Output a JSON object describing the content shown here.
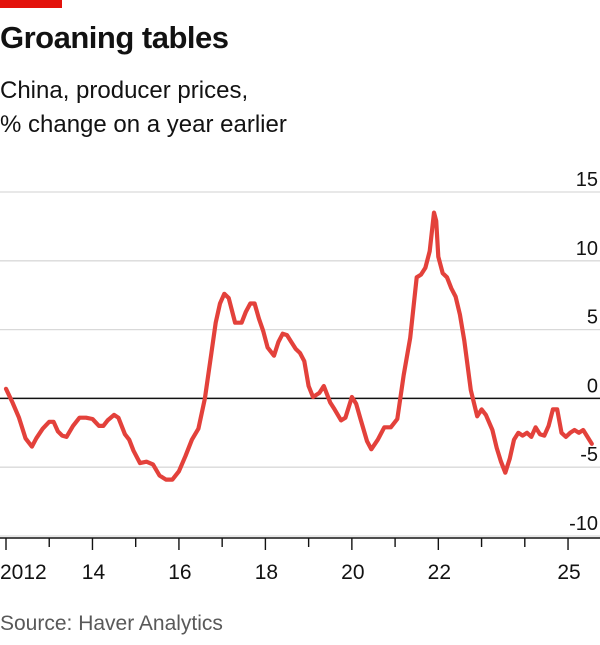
{
  "header": {
    "title": "Groaning tables",
    "subtitle_lines": [
      "China, producer prices,",
      "% change on a year earlier"
    ]
  },
  "footer": {
    "source": "Source: Haver Analytics"
  },
  "colors": {
    "accent": "#e3120b",
    "line": "#e3413b",
    "grid": "#d9d9d9",
    "zero": "#121212",
    "text": "#121212"
  },
  "chart_data": {
    "type": "line",
    "title": "",
    "xlabel": "",
    "ylabel": "",
    "ylim": [
      -10,
      15
    ],
    "xlim": [
      2012,
      2025.7
    ],
    "grid": true,
    "y_axis_side": "right",
    "y_ticks": [
      15,
      10,
      5,
      0,
      -5,
      -10
    ],
    "y_tick_labels": [
      "15",
      "10",
      "5",
      "0",
      "-5",
      "-10"
    ],
    "x_labels": [
      {
        "x": 2012,
        "label": "2012"
      },
      {
        "x": 2014,
        "label": "14"
      },
      {
        "x": 2016,
        "label": "16"
      },
      {
        "x": 2018,
        "label": "18"
      },
      {
        "x": 2020,
        "label": "20"
      },
      {
        "x": 2022,
        "label": "22"
      },
      {
        "x": 2025,
        "label": "25"
      }
    ],
    "x_minor_ticks": [
      2013,
      2015,
      2017,
      2019,
      2021,
      2023,
      2024
    ],
    "series": [
      {
        "values": [
          [
            2012.0,
            0.7
          ],
          [
            2012.15,
            -0.3
          ],
          [
            2012.3,
            -1.4
          ],
          [
            2012.45,
            -2.9
          ],
          [
            2012.6,
            -3.5
          ],
          [
            2012.7,
            -2.9
          ],
          [
            2012.85,
            -2.2
          ],
          [
            2013.0,
            -1.7
          ],
          [
            2013.1,
            -1.7
          ],
          [
            2013.2,
            -2.4
          ],
          [
            2013.3,
            -2.7
          ],
          [
            2013.4,
            -2.8
          ],
          [
            2013.55,
            -2.0
          ],
          [
            2013.7,
            -1.4
          ],
          [
            2013.85,
            -1.4
          ],
          [
            2014.0,
            -1.5
          ],
          [
            2014.15,
            -2.0
          ],
          [
            2014.25,
            -2.0
          ],
          [
            2014.35,
            -1.6
          ],
          [
            2014.5,
            -1.2
          ],
          [
            2014.6,
            -1.4
          ],
          [
            2014.75,
            -2.6
          ],
          [
            2014.85,
            -3.0
          ],
          [
            2014.95,
            -3.8
          ],
          [
            2015.1,
            -4.7
          ],
          [
            2015.25,
            -4.6
          ],
          [
            2015.4,
            -4.8
          ],
          [
            2015.55,
            -5.6
          ],
          [
            2015.7,
            -5.9
          ],
          [
            2015.85,
            -5.9
          ],
          [
            2016.0,
            -5.3
          ],
          [
            2016.15,
            -4.2
          ],
          [
            2016.3,
            -3.0
          ],
          [
            2016.45,
            -2.2
          ],
          [
            2016.6,
            0.0
          ],
          [
            2016.75,
            3.3
          ],
          [
            2016.85,
            5.5
          ],
          [
            2016.95,
            6.9
          ],
          [
            2017.05,
            7.6
          ],
          [
            2017.15,
            7.3
          ],
          [
            2017.3,
            5.5
          ],
          [
            2017.45,
            5.5
          ],
          [
            2017.55,
            6.3
          ],
          [
            2017.65,
            6.9
          ],
          [
            2017.75,
            6.9
          ],
          [
            2017.85,
            5.8
          ],
          [
            2017.95,
            4.9
          ],
          [
            2018.05,
            3.7
          ],
          [
            2018.2,
            3.1
          ],
          [
            2018.3,
            4.1
          ],
          [
            2018.4,
            4.7
          ],
          [
            2018.5,
            4.6
          ],
          [
            2018.6,
            4.1
          ],
          [
            2018.7,
            3.6
          ],
          [
            2018.8,
            3.3
          ],
          [
            2018.9,
            2.7
          ],
          [
            2019.0,
            0.9
          ],
          [
            2019.1,
            0.1
          ],
          [
            2019.25,
            0.4
          ],
          [
            2019.35,
            0.9
          ],
          [
            2019.5,
            -0.3
          ],
          [
            2019.6,
            -0.8
          ],
          [
            2019.75,
            -1.6
          ],
          [
            2019.85,
            -1.4
          ],
          [
            2020.0,
            0.1
          ],
          [
            2020.1,
            -0.4
          ],
          [
            2020.2,
            -1.5
          ],
          [
            2020.35,
            -3.1
          ],
          [
            2020.45,
            -3.7
          ],
          [
            2020.6,
            -3.0
          ],
          [
            2020.75,
            -2.1
          ],
          [
            2020.9,
            -2.1
          ],
          [
            2021.05,
            -1.5
          ],
          [
            2021.2,
            1.7
          ],
          [
            2021.35,
            4.4
          ],
          [
            2021.5,
            8.8
          ],
          [
            2021.6,
            9.0
          ],
          [
            2021.7,
            9.5
          ],
          [
            2021.8,
            10.7
          ],
          [
            2021.9,
            13.5
          ],
          [
            2021.95,
            12.9
          ],
          [
            2022.0,
            10.3
          ],
          [
            2022.1,
            9.1
          ],
          [
            2022.2,
            8.8
          ],
          [
            2022.3,
            8.0
          ],
          [
            2022.4,
            7.4
          ],
          [
            2022.5,
            6.1
          ],
          [
            2022.6,
            4.2
          ],
          [
            2022.75,
            0.6
          ],
          [
            2022.9,
            -1.3
          ],
          [
            2023.0,
            -0.8
          ],
          [
            2023.1,
            -1.2
          ],
          [
            2023.25,
            -2.3
          ],
          [
            2023.35,
            -3.6
          ],
          [
            2023.45,
            -4.6
          ],
          [
            2023.55,
            -5.4
          ],
          [
            2023.65,
            -4.4
          ],
          [
            2023.75,
            -3.0
          ],
          [
            2023.85,
            -2.5
          ],
          [
            2023.95,
            -2.7
          ],
          [
            2024.05,
            -2.5
          ],
          [
            2024.15,
            -2.8
          ],
          [
            2024.25,
            -2.1
          ],
          [
            2024.35,
            -2.6
          ],
          [
            2024.45,
            -2.7
          ],
          [
            2024.55,
            -2.0
          ],
          [
            2024.65,
            -0.8
          ],
          [
            2024.75,
            -0.8
          ],
          [
            2024.85,
            -2.5
          ],
          [
            2024.95,
            -2.8
          ],
          [
            2025.05,
            -2.5
          ],
          [
            2025.15,
            -2.3
          ],
          [
            2025.25,
            -2.5
          ],
          [
            2025.35,
            -2.3
          ],
          [
            2025.45,
            -2.8
          ],
          [
            2025.55,
            -3.3
          ]
        ]
      }
    ]
  }
}
